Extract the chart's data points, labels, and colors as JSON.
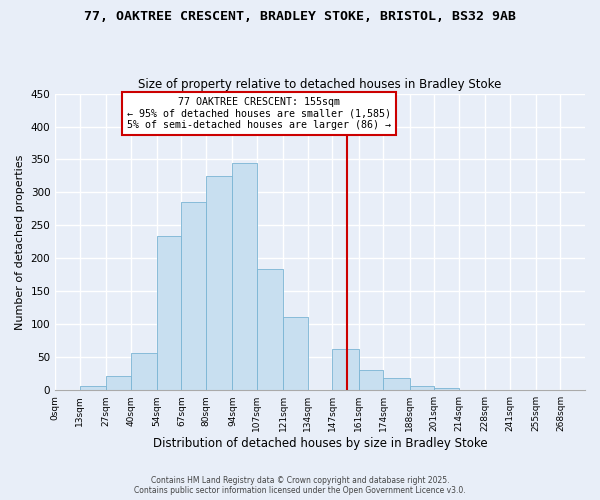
{
  "title1": "77, OAKTREE CRESCENT, BRADLEY STOKE, BRISTOL, BS32 9AB",
  "title2": "Size of property relative to detached houses in Bradley Stoke",
  "bar_color": "#c8dff0",
  "bar_edge_color": "#7ab4d4",
  "background_color": "#e8eef8",
  "grid_color": "#ffffff",
  "bin_labels": [
    "0sqm",
    "13sqm",
    "27sqm",
    "40sqm",
    "54sqm",
    "67sqm",
    "80sqm",
    "94sqm",
    "107sqm",
    "121sqm",
    "134sqm",
    "147sqm",
    "161sqm",
    "174sqm",
    "188sqm",
    "201sqm",
    "214sqm",
    "228sqm",
    "241sqm",
    "255sqm",
    "268sqm"
  ],
  "bin_edges": [
    0,
    13,
    27,
    40,
    54,
    67,
    80,
    94,
    107,
    121,
    134,
    147,
    161,
    174,
    188,
    201,
    214,
    228,
    241,
    255,
    268
  ],
  "bar_heights": [
    0,
    6,
    21,
    57,
    234,
    285,
    325,
    345,
    184,
    111,
    0,
    62,
    31,
    18,
    7,
    4,
    0,
    0,
    0,
    0
  ],
  "ylabel": "Number of detached properties",
  "xlabel": "Distribution of detached houses by size in Bradley Stoke",
  "ylim": [
    0,
    450
  ],
  "yticks": [
    0,
    50,
    100,
    150,
    200,
    250,
    300,
    350,
    400,
    450
  ],
  "vline_x": 155,
  "vline_color": "#cc0000",
  "annotation_title": "77 OAKTREE CRESCENT: 155sqm",
  "annotation_line1": "← 95% of detached houses are smaller (1,585)",
  "annotation_line2": "5% of semi-detached houses are larger (86) →",
  "annotation_box_color": "#ffffff",
  "annotation_box_edge": "#cc0000",
  "footer1": "Contains HM Land Registry data © Crown copyright and database right 2025.",
  "footer2": "Contains public sector information licensed under the Open Government Licence v3.0."
}
